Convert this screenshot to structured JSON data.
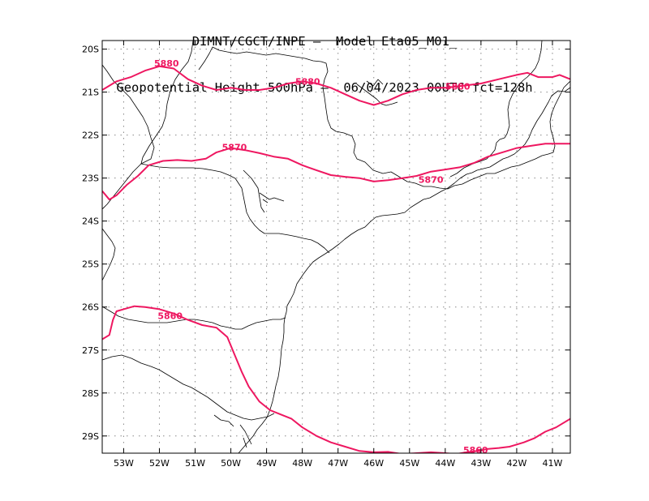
{
  "title": {
    "line1": "DIMNT/CGCT/INPE –  Model Eta05_M01_",
    "line2": "Geopotential Height 500hPa –  06/04/2023 00UTC fct=128h"
  },
  "colors": {
    "contour": "#ee1760",
    "coastline": "#000000",
    "grid": "#888888",
    "frame": "#000000",
    "background": "#ffffff"
  },
  "chart_data": {
    "type": "contour",
    "lon_range": [
      -53.6,
      -40.5
    ],
    "lat_range": [
      -29.4,
      -19.8
    ],
    "grid": true,
    "y_ticks": [
      {
        "value": -20,
        "label": "20S"
      },
      {
        "value": -21,
        "label": "21S"
      },
      {
        "value": -22,
        "label": "22S"
      },
      {
        "value": -23,
        "label": "23S"
      },
      {
        "value": -24,
        "label": "24S"
      },
      {
        "value": -25,
        "label": "25S"
      },
      {
        "value": -26,
        "label": "26S"
      },
      {
        "value": -27,
        "label": "27S"
      },
      {
        "value": -28,
        "label": "28S"
      },
      {
        "value": -29,
        "label": "29S"
      }
    ],
    "x_ticks": [
      {
        "value": -53,
        "label": "53W"
      },
      {
        "value": -52,
        "label": "52W"
      },
      {
        "value": -51,
        "label": "51W"
      },
      {
        "value": -50,
        "label": "50W"
      },
      {
        "value": -49,
        "label": "49W"
      },
      {
        "value": -48,
        "label": "48W"
      },
      {
        "value": -47,
        "label": "47W"
      },
      {
        "value": -46,
        "label": "46W"
      },
      {
        "value": -45,
        "label": "45W"
      },
      {
        "value": -44,
        "label": "44W"
      },
      {
        "value": -43,
        "label": "43W"
      },
      {
        "value": -42,
        "label": "42W"
      },
      {
        "value": -41,
        "label": "41W"
      }
    ],
    "contours": [
      {
        "value": 5880,
        "points": [
          [
            -53.6,
            -20.95
          ],
          [
            -53.2,
            -20.75
          ],
          [
            -52.8,
            -20.65
          ],
          [
            -52.4,
            -20.5
          ],
          [
            -52.0,
            -20.4
          ],
          [
            -51.6,
            -20.45
          ],
          [
            -51.2,
            -20.7
          ],
          [
            -50.8,
            -20.85
          ],
          [
            -50.4,
            -20.95
          ],
          [
            -50.0,
            -20.9
          ],
          [
            -49.6,
            -20.95
          ],
          [
            -49.2,
            -20.95
          ],
          [
            -48.8,
            -20.9
          ],
          [
            -48.4,
            -20.8
          ],
          [
            -48.0,
            -20.75
          ],
          [
            -47.6,
            -20.8
          ],
          [
            -47.2,
            -20.9
          ],
          [
            -46.8,
            -21.05
          ],
          [
            -46.4,
            -21.2
          ],
          [
            -46.0,
            -21.3
          ],
          [
            -45.6,
            -21.2
          ],
          [
            -45.2,
            -21.05
          ],
          [
            -44.8,
            -20.95
          ],
          [
            -44.4,
            -20.9
          ],
          [
            -44.0,
            -20.9
          ],
          [
            -43.5,
            -20.85
          ],
          [
            -43.0,
            -20.8
          ],
          [
            -42.5,
            -20.7
          ],
          [
            -42.0,
            -20.6
          ],
          [
            -41.7,
            -20.55
          ],
          [
            -41.4,
            -20.65
          ],
          [
            -41.0,
            -20.65
          ],
          [
            -40.8,
            -20.6
          ],
          [
            -40.5,
            -20.7
          ]
        ],
        "labels": [
          {
            "lon": -51.8,
            "lat": -20.33
          },
          {
            "lon": -47.85,
            "lat": -20.75
          },
          {
            "lon": -43.65,
            "lat": -20.87
          }
        ]
      },
      {
        "value": 5870,
        "points": [
          [
            -53.6,
            -23.3
          ],
          [
            -53.4,
            -23.5
          ],
          [
            -53.2,
            -23.4
          ],
          [
            -52.9,
            -23.15
          ],
          [
            -52.6,
            -22.95
          ],
          [
            -52.3,
            -22.7
          ],
          [
            -51.9,
            -22.6
          ],
          [
            -51.5,
            -22.58
          ],
          [
            -51.1,
            -22.6
          ],
          [
            -50.7,
            -22.55
          ],
          [
            -50.4,
            -22.4
          ],
          [
            -50.0,
            -22.3
          ],
          [
            -49.6,
            -22.35
          ],
          [
            -49.2,
            -22.42
          ],
          [
            -48.8,
            -22.5
          ],
          [
            -48.4,
            -22.55
          ],
          [
            -48.0,
            -22.7
          ],
          [
            -47.6,
            -22.82
          ],
          [
            -47.2,
            -22.93
          ],
          [
            -46.8,
            -22.97
          ],
          [
            -46.4,
            -23.0
          ],
          [
            -46.0,
            -23.08
          ],
          [
            -45.6,
            -23.05
          ],
          [
            -45.2,
            -23.0
          ],
          [
            -44.8,
            -22.95
          ],
          [
            -44.4,
            -22.85
          ],
          [
            -44.0,
            -22.8
          ],
          [
            -43.6,
            -22.75
          ],
          [
            -43.2,
            -22.65
          ],
          [
            -42.8,
            -22.5
          ],
          [
            -42.4,
            -22.4
          ],
          [
            -42.0,
            -22.3
          ],
          [
            -41.6,
            -22.25
          ],
          [
            -41.2,
            -22.2
          ],
          [
            -40.5,
            -22.2
          ]
        ],
        "labels": [
          {
            "lon": -49.9,
            "lat": -22.28
          },
          {
            "lon": -44.4,
            "lat": -23.03
          }
        ]
      },
      {
        "value": 5860,
        "points": [
          [
            -53.6,
            -26.75
          ],
          [
            -53.4,
            -26.65
          ],
          [
            -53.3,
            -26.3
          ],
          [
            -53.2,
            -26.1
          ],
          [
            -53.0,
            -26.05
          ],
          [
            -52.7,
            -25.98
          ],
          [
            -52.4,
            -26.0
          ],
          [
            -52.0,
            -26.05
          ],
          [
            -51.6,
            -26.15
          ],
          [
            -51.2,
            -26.3
          ],
          [
            -50.8,
            -26.42
          ],
          [
            -50.4,
            -26.48
          ],
          [
            -50.1,
            -26.7
          ],
          [
            -49.9,
            -27.1
          ],
          [
            -49.7,
            -27.5
          ],
          [
            -49.5,
            -27.85
          ],
          [
            -49.2,
            -28.2
          ],
          [
            -48.9,
            -28.4
          ],
          [
            -48.6,
            -28.5
          ],
          [
            -48.3,
            -28.6
          ],
          [
            -48.0,
            -28.8
          ],
          [
            -47.6,
            -29.0
          ],
          [
            -47.2,
            -29.15
          ],
          [
            -46.8,
            -29.25
          ],
          [
            -46.4,
            -29.35
          ],
          [
            -46.0,
            -29.38
          ],
          [
            -45.6,
            -29.37
          ],
          [
            -45.2,
            -29.42
          ],
          [
            -44.8,
            -29.4
          ],
          [
            -44.4,
            -29.38
          ],
          [
            -44.0,
            -29.4
          ],
          [
            -43.7,
            -29.42
          ],
          [
            -43.4,
            -29.38
          ],
          [
            -43.1,
            -29.35
          ],
          [
            -42.8,
            -29.3
          ],
          [
            -42.5,
            -29.28
          ],
          [
            -42.2,
            -29.25
          ],
          [
            -41.8,
            -29.15
          ],
          [
            -41.5,
            -29.05
          ],
          [
            -41.2,
            -28.9
          ],
          [
            -40.9,
            -28.8
          ],
          [
            -40.5,
            -28.6
          ]
        ],
        "labels": [
          {
            "lon": -51.7,
            "lat": -26.2
          },
          {
            "lon": -43.15,
            "lat": -29.32
          }
        ]
      }
    ]
  }
}
